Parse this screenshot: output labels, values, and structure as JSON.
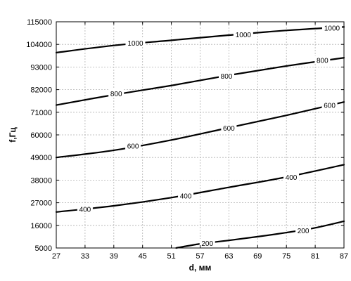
{
  "chart_data": {
    "type": "line",
    "title": "",
    "xlabel": "d, мм",
    "ylabel": "f,Гц",
    "xlim": [
      27,
      87
    ],
    "ylim": [
      5000,
      115000
    ],
    "x_ticks": [
      27,
      33,
      39,
      45,
      51,
      57,
      63,
      69,
      75,
      81,
      87
    ],
    "y_ticks": [
      5000,
      16000,
      27000,
      38000,
      49000,
      60000,
      71000,
      82000,
      93000,
      104000,
      115000
    ],
    "x_tick_labels": [
      "27",
      "33",
      "39",
      "45",
      "51",
      "57",
      "63",
      "69",
      "75",
      "81",
      "87"
    ],
    "y_tick_labels": [
      "5000",
      "16000",
      "27000",
      "38000",
      "49000",
      "60000",
      "71000",
      "82000",
      "93000",
      "104000",
      "115000"
    ],
    "grid": true,
    "line_color": "#000000",
    "grid_color": "#b0b0b0",
    "series": [
      {
        "contour_level": "1000",
        "x": [
          27,
          39,
          51,
          63,
          75,
          87
        ],
        "y": [
          100000,
          103500,
          106000,
          108500,
          110800,
          112500
        ],
        "labels": [
          {
            "text": "1000",
            "x": 43.5,
            "y": 104700
          },
          {
            "text": "1000",
            "x": 66,
            "y": 108800
          },
          {
            "text": "1000",
            "x": 84.5,
            "y": 112100
          }
        ]
      },
      {
        "contour_level": "800",
        "x": [
          27,
          39,
          51,
          63,
          75,
          87
        ],
        "y": [
          74500,
          79500,
          84000,
          89000,
          93500,
          97500
        ],
        "labels": [
          {
            "text": "800",
            "x": 39.5,
            "y": 80200
          },
          {
            "text": "800",
            "x": 62.5,
            "y": 88700
          },
          {
            "text": "800",
            "x": 82.5,
            "y": 96300
          }
        ]
      },
      {
        "contour_level": "600",
        "x": [
          27,
          39,
          51,
          63,
          75,
          87
        ],
        "y": [
          49000,
          52500,
          57500,
          63500,
          69500,
          76000
        ],
        "labels": [
          {
            "text": "600",
            "x": 43,
            "y": 54700
          },
          {
            "text": "600",
            "x": 63,
            "y": 63500
          },
          {
            "text": "600",
            "x": 84,
            "y": 74500
          }
        ]
      },
      {
        "contour_level": "400",
        "x": [
          27,
          39,
          51,
          63,
          75,
          87
        ],
        "y": [
          22500,
          25500,
          29500,
          34500,
          39500,
          45500
        ],
        "labels": [
          {
            "text": "400",
            "x": 33,
            "y": 24000
          },
          {
            "text": "400",
            "x": 54,
            "y": 30500
          },
          {
            "text": "400",
            "x": 76,
            "y": 39500
          }
        ]
      },
      {
        "contour_level": "200",
        "x": [
          52,
          57,
          63,
          69,
          75,
          81,
          87
        ],
        "y": [
          5000,
          7000,
          8700,
          10500,
          12500,
          14800,
          18000
        ],
        "labels": [
          {
            "text": "200",
            "x": 58.5,
            "y": 7400
          },
          {
            "text": "200",
            "x": 78.5,
            "y": 13600
          }
        ]
      }
    ]
  }
}
